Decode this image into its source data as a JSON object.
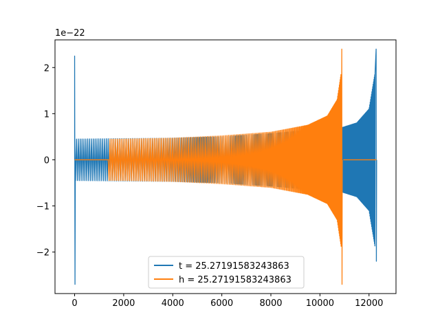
{
  "chart_data": {
    "type": "line",
    "title": "",
    "xlabel": "",
    "ylabel": "",
    "y_offset_label": "1e−22",
    "xlim": [
      -800,
      13100
    ],
    "ylim": [
      -2.9,
      2.6
    ],
    "x_ticks": [
      0,
      2000,
      4000,
      6000,
      8000,
      10000,
      12000
    ],
    "x_tick_labels": [
      "0",
      "2000",
      "4000",
      "6000",
      "8000",
      "10000",
      "12000"
    ],
    "y_ticks": [
      -2,
      -1,
      0,
      1,
      2
    ],
    "y_tick_labels": [
      "−2",
      "−1",
      "0",
      "1",
      "2"
    ],
    "grid": false,
    "legend_position": "lower center",
    "series": [
      {
        "name": "t = 25.27191583243863",
        "color": "#1f77b4",
        "start_spike": {
          "x": 0,
          "max": 2.25,
          "min": -2.7
        },
        "oscillation": [
          {
            "x": 0,
            "amp": 0.45
          },
          {
            "x": 2000,
            "amp": 0.46
          },
          {
            "x": 4000,
            "amp": 0.47
          },
          {
            "x": 6000,
            "amp": 0.5
          },
          {
            "x": 8000,
            "amp": 0.57
          },
          {
            "x": 10900,
            "amp": 0.7
          },
          {
            "x": 11500,
            "amp": 0.8
          },
          {
            "x": 12000,
            "amp": 1.1
          },
          {
            "x": 12250,
            "amp": 1.9
          }
        ],
        "merger": {
          "x": 12300,
          "max": 2.4,
          "min": -2.2
        }
      },
      {
        "name": "h = 25.27191583243863",
        "color": "#ff7f0e",
        "flat_segments": [
          [
            0,
            1400
          ],
          [
            10950,
            12300
          ]
        ],
        "oscillation": [
          {
            "x": 0,
            "amp": 0.44
          },
          {
            "x": 2000,
            "amp": 0.45
          },
          {
            "x": 4000,
            "amp": 0.47
          },
          {
            "x": 6000,
            "amp": 0.52
          },
          {
            "x": 8000,
            "amp": 0.6
          },
          {
            "x": 9500,
            "amp": 0.75
          },
          {
            "x": 10300,
            "amp": 0.95
          },
          {
            "x": 10700,
            "amp": 1.3
          },
          {
            "x": 10870,
            "amp": 1.9
          }
        ],
        "merger": {
          "x": 10900,
          "max": 2.4,
          "min": -2.7
        }
      }
    ]
  }
}
